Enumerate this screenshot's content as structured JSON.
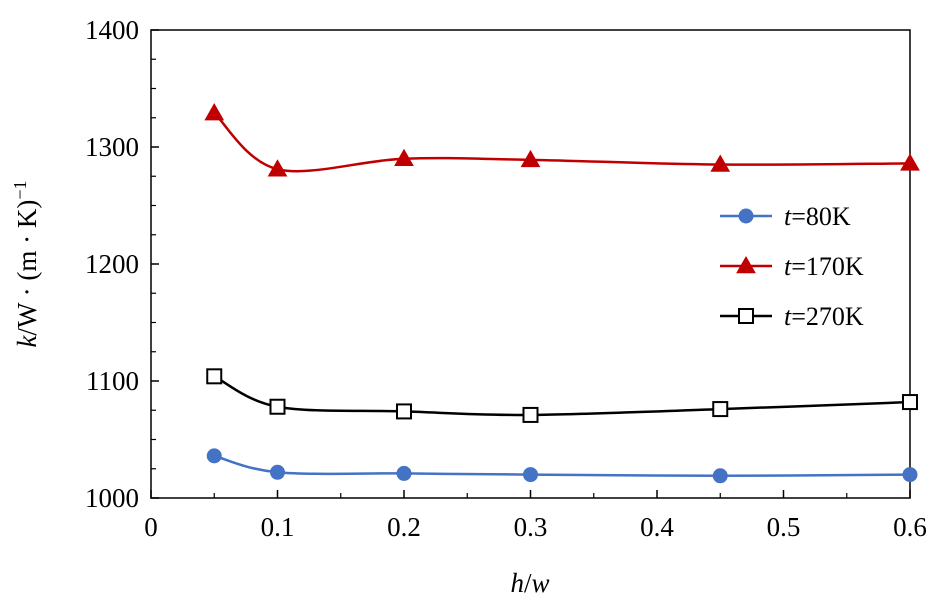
{
  "chart_data": {
    "type": "line",
    "xlabel_var": "h",
    "xlabel_sep": "/",
    "xlabel_var2": "w",
    "ylabel_var": "k",
    "ylabel_rest": "/W · (m · K)",
    "ylabel_sup": "−1",
    "xlim": [
      0,
      0.6
    ],
    "ylim": [
      1000,
      1400
    ],
    "x_ticks": [
      "0",
      "0.1",
      "0.2",
      "0.3",
      "0.4",
      "0.5",
      "0.6"
    ],
    "y_ticks": [
      "1000",
      "1100",
      "1200",
      "1300",
      "1400"
    ],
    "x": [
      0.05,
      0.1,
      0.2,
      0.3,
      0.45,
      0.6
    ],
    "series": [
      {
        "name_var": "t",
        "name_rest": "=80K",
        "values": [
          1036,
          1022,
          1021,
          1020,
          1019,
          1020
        ],
        "color": "#4472c4",
        "marker": "circle"
      },
      {
        "name_var": "t",
        "name_rest": "=170K",
        "values": [
          1329,
          1281,
          1290,
          1289,
          1285,
          1286
        ],
        "color": "#c00000",
        "marker": "triangle"
      },
      {
        "name_var": "t",
        "name_rest": "=270K",
        "values": [
          1104,
          1078,
          1074,
          1071,
          1076,
          1082
        ],
        "color": "#000000",
        "marker": "open-square"
      }
    ],
    "grid": false,
    "legend_position": "right"
  }
}
